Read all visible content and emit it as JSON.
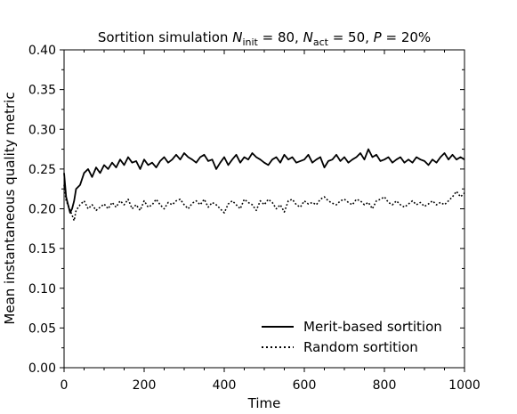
{
  "chart_data": {
    "type": "line",
    "title": {
      "prefix": "Sortition simulation ",
      "n_init_label": "N",
      "n_init_sub": "init",
      "n_init_value": " = 80, ",
      "n_act_label": "N",
      "n_act_sub": "act",
      "n_act_value": " = 50, ",
      "p_label": "P",
      "p_value": " = 20%"
    },
    "xlabel": "Time",
    "ylabel": "Mean instantaneous quality metric",
    "xlim": [
      0,
      1000
    ],
    "ylim": [
      0,
      0.4
    ],
    "xticks": [
      {
        "value": 0,
        "label": "0"
      },
      {
        "value": 200,
        "label": "200"
      },
      {
        "value": 400,
        "label": "400"
      },
      {
        "value": 600,
        "label": "600"
      },
      {
        "value": 800,
        "label": "800"
      },
      {
        "value": 1000,
        "label": "1000"
      }
    ],
    "yticks": [
      {
        "value": 0.0,
        "label": "0.00"
      },
      {
        "value": 0.05,
        "label": "0.05"
      },
      {
        "value": 0.1,
        "label": "0.10"
      },
      {
        "value": 0.15,
        "label": "0.15"
      },
      {
        "value": 0.2,
        "label": "0.20"
      },
      {
        "value": 0.25,
        "label": "0.25"
      },
      {
        "value": 0.3,
        "label": "0.30"
      },
      {
        "value": 0.35,
        "label": "0.35"
      },
      {
        "value": 0.4,
        "label": "0.40"
      }
    ],
    "grid": false,
    "legend_position": "lower-right",
    "series": [
      {
        "name": "Merit-based sortition",
        "style": "solid",
        "color": "#000000",
        "x": [
          0,
          5,
          10,
          15,
          20,
          25,
          30,
          40,
          50,
          60,
          70,
          80,
          90,
          100,
          110,
          120,
          130,
          140,
          150,
          160,
          170,
          180,
          190,
          200,
          210,
          220,
          230,
          240,
          250,
          260,
          270,
          280,
          290,
          300,
          310,
          320,
          330,
          340,
          350,
          360,
          370,
          380,
          390,
          400,
          410,
          420,
          430,
          440,
          450,
          460,
          470,
          480,
          490,
          500,
          510,
          520,
          530,
          540,
          550,
          560,
          570,
          580,
          590,
          600,
          610,
          620,
          630,
          640,
          650,
          660,
          670,
          680,
          690,
          700,
          710,
          720,
          730,
          740,
          750,
          760,
          770,
          780,
          790,
          800,
          810,
          820,
          830,
          840,
          850,
          860,
          870,
          880,
          890,
          900,
          910,
          920,
          930,
          940,
          950,
          960,
          970,
          980,
          990,
          1000
        ],
        "y": [
          0.245,
          0.215,
          0.205,
          0.195,
          0.2,
          0.21,
          0.225,
          0.23,
          0.245,
          0.25,
          0.24,
          0.252,
          0.245,
          0.255,
          0.25,
          0.258,
          0.252,
          0.262,
          0.255,
          0.265,
          0.258,
          0.26,
          0.25,
          0.262,
          0.255,
          0.258,
          0.252,
          0.26,
          0.265,
          0.258,
          0.262,
          0.268,
          0.262,
          0.27,
          0.265,
          0.262,
          0.258,
          0.265,
          0.268,
          0.26,
          0.262,
          0.25,
          0.258,
          0.265,
          0.255,
          0.262,
          0.268,
          0.258,
          0.265,
          0.262,
          0.27,
          0.265,
          0.262,
          0.258,
          0.255,
          0.262,
          0.265,
          0.258,
          0.268,
          0.262,
          0.265,
          0.258,
          0.26,
          0.262,
          0.268,
          0.258,
          0.262,
          0.265,
          0.252,
          0.26,
          0.262,
          0.268,
          0.26,
          0.265,
          0.258,
          0.262,
          0.265,
          0.27,
          0.262,
          0.275,
          0.265,
          0.268,
          0.26,
          0.262,
          0.265,
          0.258,
          0.262,
          0.265,
          0.258,
          0.262,
          0.258,
          0.265,
          0.262,
          0.26,
          0.255,
          0.262,
          0.258,
          0.265,
          0.27,
          0.262,
          0.268,
          0.262,
          0.265,
          0.262
        ]
      },
      {
        "name": "Random sortition",
        "style": "dotted",
        "color": "#000000",
        "x": [
          0,
          5,
          10,
          15,
          20,
          25,
          30,
          40,
          50,
          60,
          70,
          80,
          90,
          100,
          110,
          120,
          130,
          140,
          150,
          160,
          170,
          180,
          190,
          200,
          210,
          220,
          230,
          240,
          250,
          260,
          270,
          280,
          290,
          300,
          310,
          320,
          330,
          340,
          350,
          360,
          370,
          380,
          390,
          400,
          410,
          420,
          430,
          440,
          450,
          460,
          470,
          480,
          490,
          500,
          510,
          520,
          530,
          540,
          550,
          560,
          570,
          580,
          590,
          600,
          610,
          620,
          630,
          640,
          650,
          660,
          670,
          680,
          690,
          700,
          710,
          720,
          730,
          740,
          750,
          760,
          770,
          780,
          790,
          800,
          810,
          820,
          830,
          840,
          850,
          860,
          870,
          880,
          890,
          900,
          910,
          920,
          930,
          940,
          950,
          960,
          970,
          980,
          990,
          1000
        ],
        "y": [
          0.23,
          0.21,
          0.205,
          0.198,
          0.192,
          0.185,
          0.198,
          0.205,
          0.21,
          0.2,
          0.205,
          0.198,
          0.202,
          0.206,
          0.2,
          0.208,
          0.202,
          0.21,
          0.205,
          0.212,
          0.2,
          0.205,
          0.198,
          0.21,
          0.202,
          0.205,
          0.212,
          0.205,
          0.2,
          0.208,
          0.205,
          0.21,
          0.212,
          0.205,
          0.2,
          0.207,
          0.21,
          0.205,
          0.212,
          0.202,
          0.208,
          0.205,
          0.2,
          0.195,
          0.206,
          0.21,
          0.205,
          0.2,
          0.212,
          0.208,
          0.205,
          0.198,
          0.21,
          0.205,
          0.212,
          0.208,
          0.2,
          0.205,
          0.196,
          0.21,
          0.212,
          0.205,
          0.202,
          0.21,
          0.206,
          0.208,
          0.205,
          0.212,
          0.215,
          0.21,
          0.207,
          0.205,
          0.21,
          0.212,
          0.208,
          0.205,
          0.212,
          0.21,
          0.205,
          0.208,
          0.2,
          0.21,
          0.212,
          0.215,
          0.208,
          0.205,
          0.21,
          0.205,
          0.202,
          0.206,
          0.21,
          0.205,
          0.208,
          0.203,
          0.206,
          0.21,
          0.205,
          0.208,
          0.205,
          0.21,
          0.215,
          0.222,
          0.215,
          0.22
        ]
      }
    ]
  }
}
